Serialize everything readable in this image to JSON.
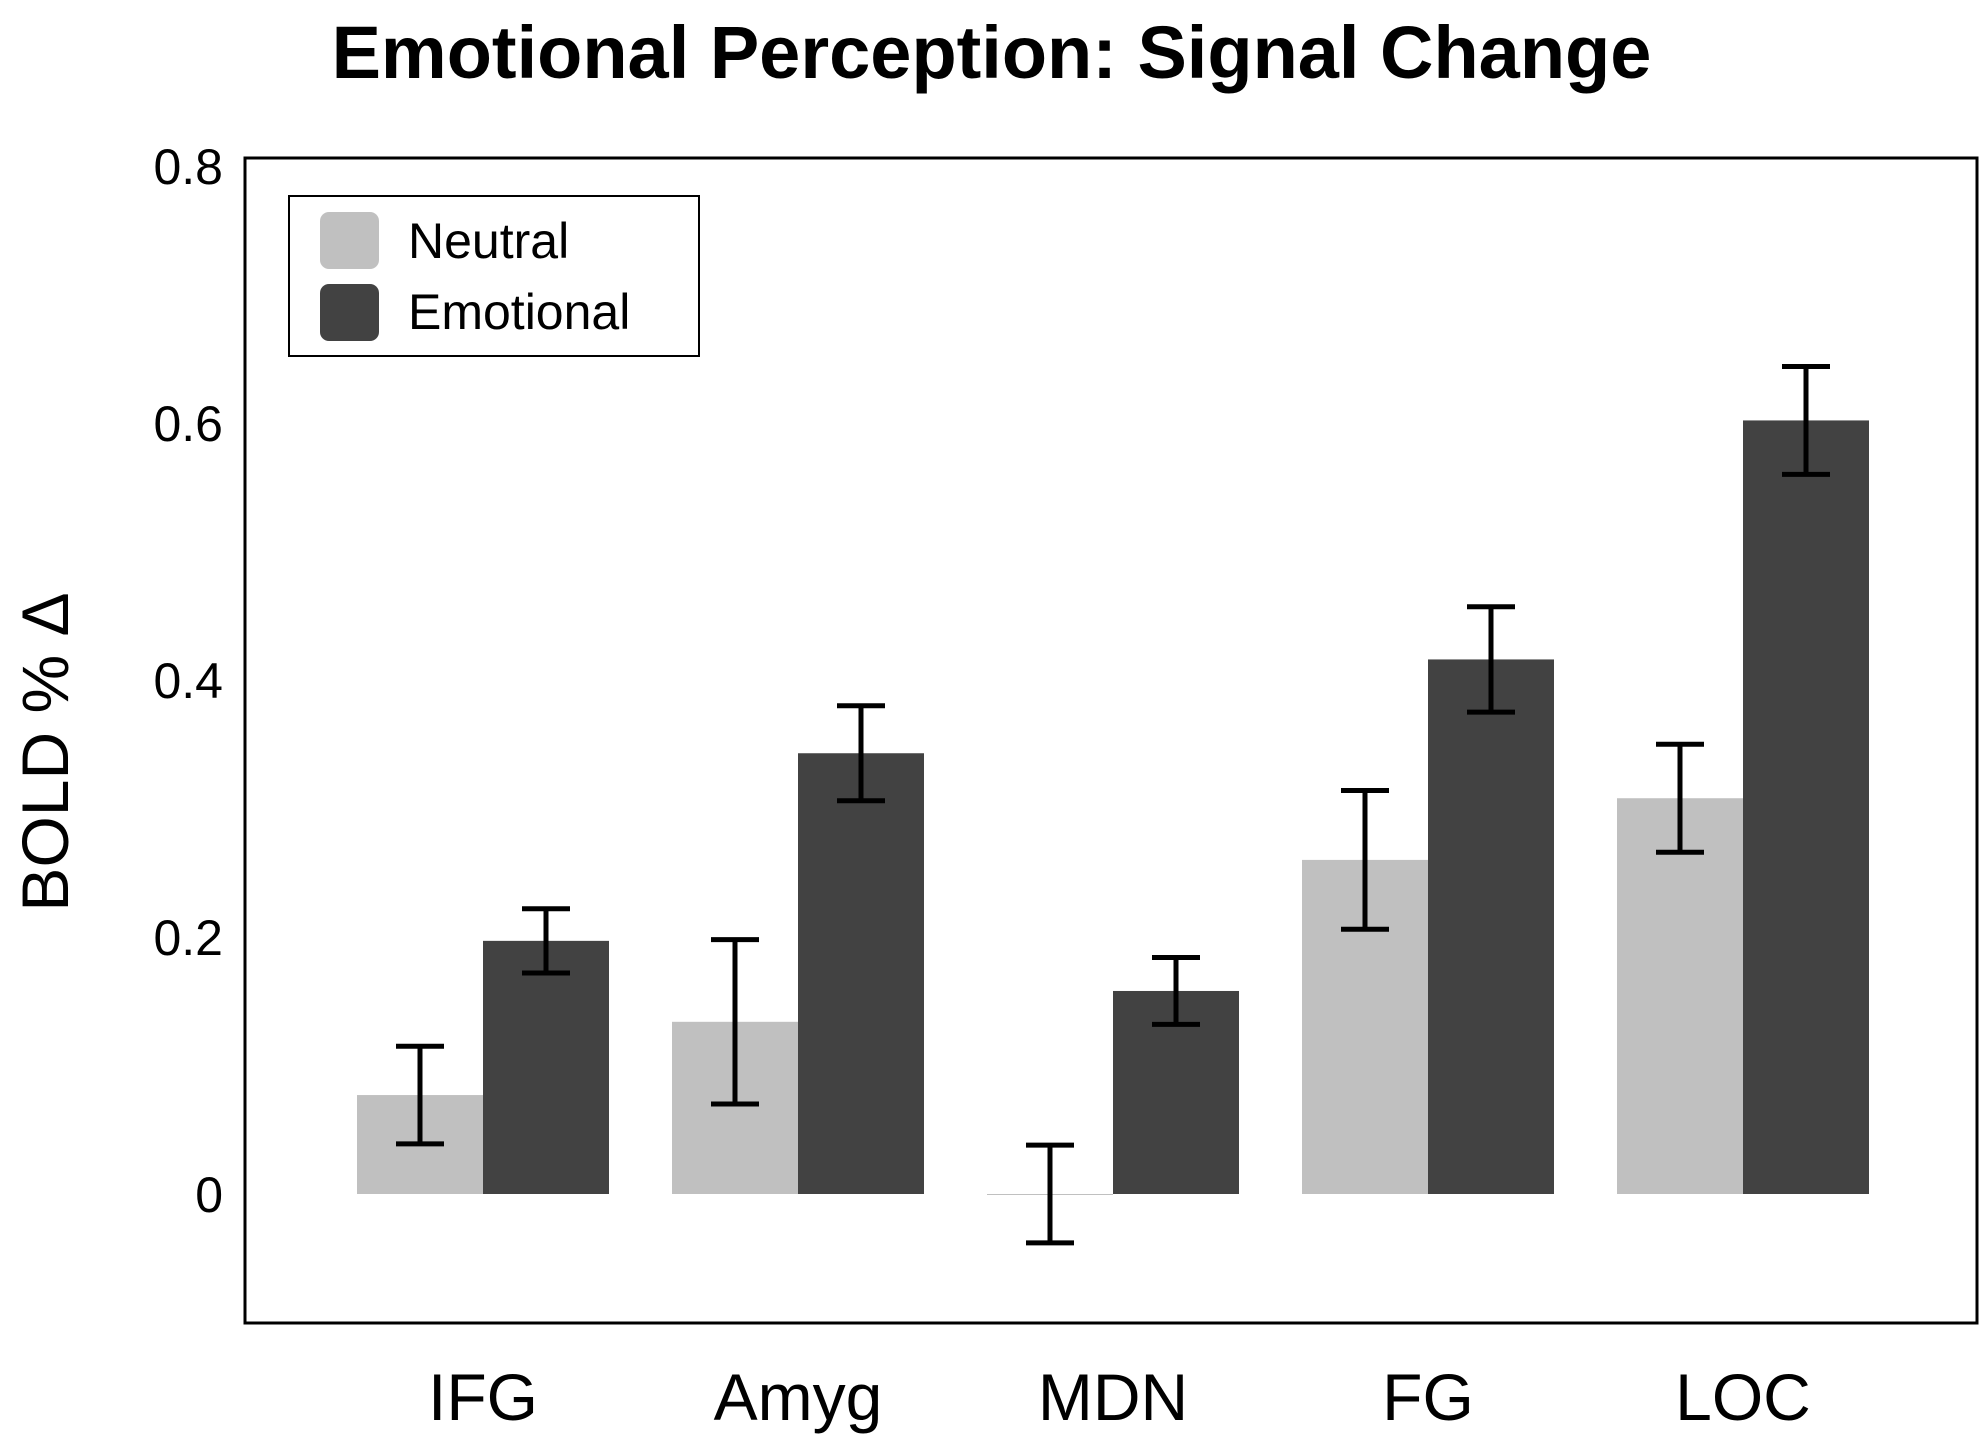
{
  "chart_data": {
    "type": "bar",
    "title": "Emotional Perception: Signal Change",
    "xlabel": "",
    "ylabel": "BOLD % Δ",
    "categories": [
      "IFG",
      "Amyg",
      "MDN",
      "FG",
      "LOC"
    ],
    "ylim": [
      -0.1,
      0.8
    ],
    "yticks": [
      0,
      0.2,
      0.4,
      0.6,
      0.8
    ],
    "ytick_labels": [
      "0",
      "0.2",
      "0.4",
      "0.6",
      "0.8"
    ],
    "grid": false,
    "legend_position": "top-left",
    "series": [
      {
        "name": "Neutral",
        "color": "#c0c0c0",
        "values": [
          0.077,
          0.134,
          0.0,
          0.26,
          0.308
        ],
        "errors": [
          0.038,
          0.064,
          0.038,
          0.054,
          0.042
        ]
      },
      {
        "name": "Emotional",
        "color": "#424242",
        "values": [
          0.197,
          0.343,
          0.158,
          0.416,
          0.602
        ],
        "errors": [
          0.025,
          0.037,
          0.026,
          0.041,
          0.042
        ]
      }
    ]
  }
}
